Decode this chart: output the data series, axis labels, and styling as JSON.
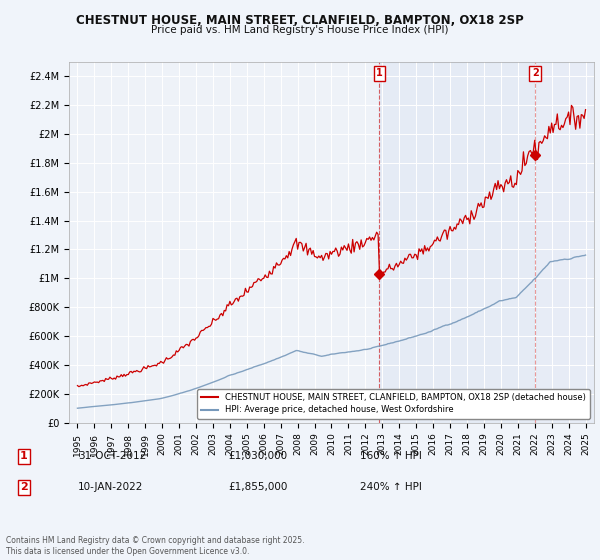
{
  "title1": "CHESTNUT HOUSE, MAIN STREET, CLANFIELD, BAMPTON, OX18 2SP",
  "title2": "Price paid vs. HM Land Registry's House Price Index (HPI)",
  "background_color": "#f0f4fa",
  "plot_bg_color": "#eef2f8",
  "grid_color": "#ffffff",
  "red_line_color": "#cc0000",
  "blue_line_color": "#7799bb",
  "marker1_date": "31-OCT-2012",
  "marker1_price": 1030000,
  "marker1_label": "160% ↑ HPI",
  "marker1_x": 2012.83,
  "marker2_date": "10-JAN-2022",
  "marker2_price": 1855000,
  "marker2_label": "240% ↑ HPI",
  "marker2_x": 2022.03,
  "legend_line1": "CHESTNUT HOUSE, MAIN STREET, CLANFIELD, BAMPTON, OX18 2SP (detached house)",
  "legend_line2": "HPI: Average price, detached house, West Oxfordshire",
  "footnote": "Contains HM Land Registry data © Crown copyright and database right 2025.\nThis data is licensed under the Open Government Licence v3.0.",
  "ylim": [
    0,
    2500000
  ],
  "yticks": [
    0,
    200000,
    400000,
    600000,
    800000,
    1000000,
    1200000,
    1400000,
    1600000,
    1800000,
    2000000,
    2200000,
    2400000
  ],
  "ytick_labels": [
    "£0",
    "£200K",
    "£400K",
    "£600K",
    "£800K",
    "£1M",
    "£1.2M",
    "£1.4M",
    "£1.6M",
    "£1.8M",
    "£2M",
    "£2.2M",
    "£2.4M"
  ],
  "xlim": [
    1994.5,
    2025.5
  ]
}
